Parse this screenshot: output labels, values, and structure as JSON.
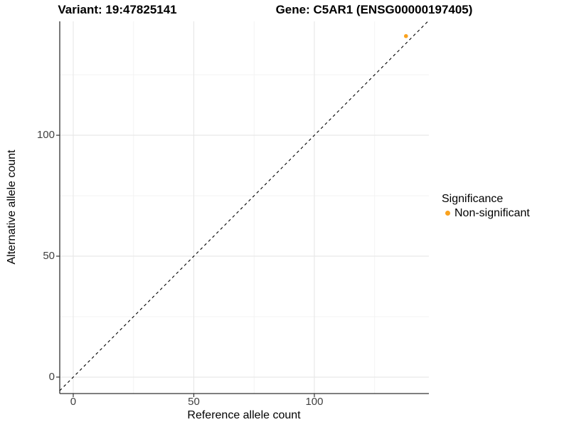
{
  "titles": {
    "left": "Variant: 19:47825141",
    "right": "Gene: C5AR1 (ENSG00000197405)"
  },
  "chart_data": {
    "type": "scatter",
    "xlabel": "Reference allele count",
    "ylabel": "Alternative allele count",
    "x_ticks": [
      0,
      50,
      100
    ],
    "y_ticks": [
      0,
      50,
      100
    ],
    "x_minor_ticks": [
      25,
      75,
      125
    ],
    "y_minor_ticks": [
      25,
      75,
      125
    ],
    "xlim": [
      -5.6,
      147.5
    ],
    "ylim": [
      -6.8,
      147.1
    ],
    "grid": true,
    "points": [
      {
        "x": 138,
        "y": 141,
        "series": "Non-significant"
      }
    ],
    "reference_line": {
      "slope": 1,
      "intercept": 0,
      "style": "dashed",
      "color": "#000000"
    },
    "legend": {
      "position": "right",
      "title": "Significance",
      "entries": [
        {
          "label": "Non-significant",
          "color": "#FAA21E"
        }
      ]
    },
    "colors": {
      "point": "#FAA21E",
      "grid_major": "#e6e6e6",
      "grid_minor": "#f2f2f2",
      "axis_line": "#333333",
      "tick_mark": "#333333",
      "tick_label": "#404040"
    }
  }
}
